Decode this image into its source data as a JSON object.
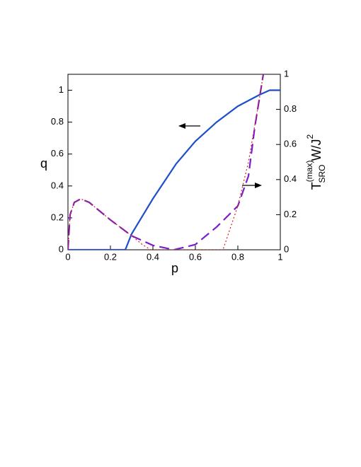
{
  "chart_data": {
    "type": "line",
    "xlabel": "p",
    "ylabel": "q",
    "y2label": {
      "base": "T",
      "sup": "(max)",
      "sub": "SRO",
      "rest": " W/J",
      "sup2": "2"
    },
    "xlim": [
      0,
      1
    ],
    "xticks": [
      0,
      0.2,
      0.4,
      0.6,
      0.8,
      1
    ],
    "ylim": [
      0,
      1.1
    ],
    "yticks": [
      0,
      0.2,
      0.4,
      0.6,
      0.8,
      1
    ],
    "y2lim": [
      0,
      1
    ],
    "y2ticks": [
      0,
      0.2,
      0.4,
      0.6,
      0.8,
      1
    ],
    "series": [
      {
        "color": "#1f4fc8",
        "style": "solid",
        "axis": "y",
        "x": [
          0,
          0.27,
          0.3,
          0.35,
          0.4,
          0.51,
          0.6,
          0.7,
          0.8,
          0.9,
          0.95,
          1
        ],
        "values": [
          0,
          0,
          0.1,
          0.21,
          0.32,
          0.54,
          0.68,
          0.8,
          0.9,
          0.97,
          1.0,
          1.0
        ]
      },
      {
        "color": "#7a1fc8",
        "style": "dashed",
        "axis": "y2",
        "x": [
          0,
          0.01,
          0.03,
          0.06,
          0.1,
          0.2,
          0.3,
          0.4,
          0.5,
          0.6,
          0.7,
          0.8,
          0.85,
          0.88,
          0.92
        ],
        "values": [
          0,
          0.2,
          0.27,
          0.29,
          0.27,
          0.17,
          0.08,
          0.025,
          0,
          0.03,
          0.13,
          0.25,
          0.42,
          0.7,
          1.0
        ]
      },
      {
        "color": "#d0201a",
        "style": "dotted",
        "axis": "y2",
        "x": [
          0,
          0.01,
          0.03,
          0.06,
          0.1,
          0.2,
          0.3,
          0.35,
          0.39,
          0.73,
          0.8,
          0.85,
          0.9,
          0.92
        ],
        "values": [
          0,
          0.2,
          0.27,
          0.29,
          0.27,
          0.17,
          0.08,
          0.03,
          0,
          0,
          0.25,
          0.5,
          0.85,
          1.0
        ]
      }
    ]
  }
}
